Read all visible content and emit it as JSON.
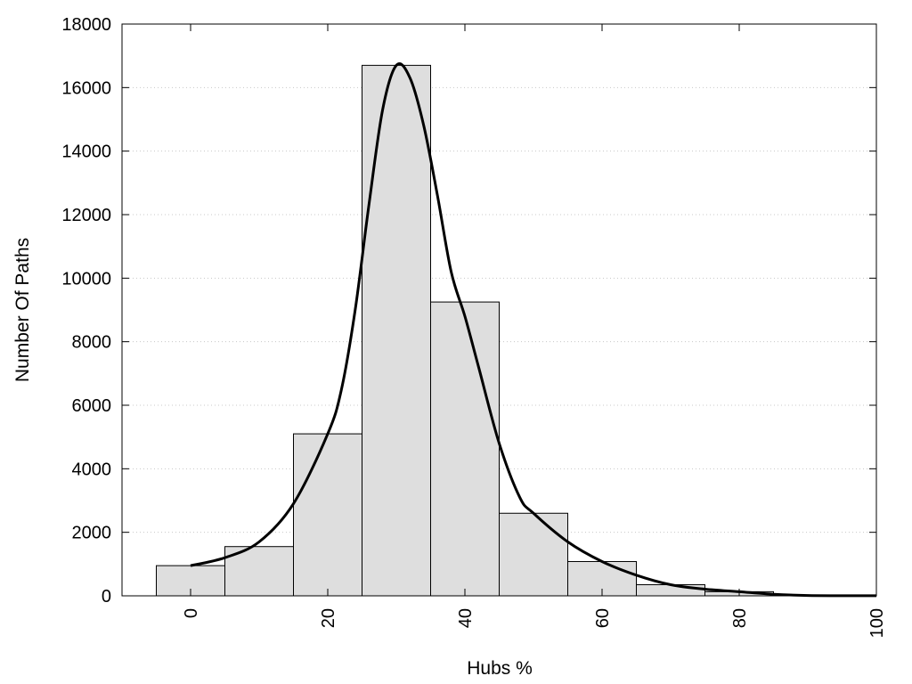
{
  "chart_data": {
    "type": "bar",
    "title": "",
    "xlabel": "Hubs %",
    "ylabel": "Number Of Paths",
    "xlim": [
      -10,
      100
    ],
    "ylim": [
      0,
      18000
    ],
    "x_ticks": [
      "0",
      "20",
      "40",
      "60",
      "80",
      "100"
    ],
    "y_ticks": [
      "0",
      "2000",
      "4000",
      "6000",
      "8000",
      "10000",
      "12000",
      "14000",
      "16000",
      "18000"
    ],
    "grid": "horizontal-dotted",
    "bar_width": 10,
    "bars": [
      {
        "x": 0,
        "value": 950
      },
      {
        "x": 10,
        "value": 1550
      },
      {
        "x": 20,
        "value": 5100
      },
      {
        "x": 30,
        "value": 16700
      },
      {
        "x": 40,
        "value": 9250
      },
      {
        "x": 50,
        "value": 2600
      },
      {
        "x": 60,
        "value": 1080
      },
      {
        "x": 70,
        "value": 350
      },
      {
        "x": 80,
        "value": 130
      },
      {
        "x": 90,
        "value": 25
      },
      {
        "x": 100,
        "value": 10
      }
    ],
    "curve": {
      "x": [
        0,
        5,
        10,
        15,
        20,
        22,
        24,
        26,
        28,
        30,
        32,
        34,
        36,
        38,
        40,
        42,
        45,
        48,
        50,
        55,
        60,
        65,
        70,
        75,
        80,
        85,
        90,
        95,
        100
      ],
      "y": [
        950,
        1200,
        1700,
        2900,
        5100,
        6500,
        9000,
        12300,
        15300,
        16700,
        16300,
        14800,
        12600,
        10200,
        8800,
        7200,
        4800,
        3100,
        2600,
        1700,
        1080,
        650,
        350,
        210,
        130,
        50,
        10,
        5,
        5
      ]
    },
    "colors": {
      "bar_fill": "#dedede",
      "bar_stroke": "#000000",
      "curve": "#000000",
      "grid": "#c8c8c8"
    }
  }
}
